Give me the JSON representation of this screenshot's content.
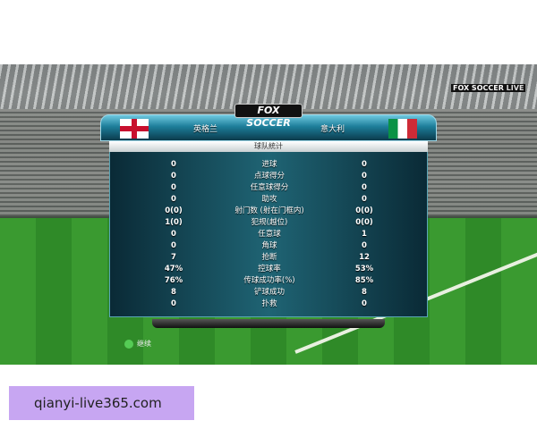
{
  "broadcast": {
    "logo": "FOX SOCCER",
    "live_logo": "FOX SOCCER",
    "live_label": "LIVE"
  },
  "teams": {
    "home": "英格兰",
    "away": "意大利"
  },
  "title": "球队統计",
  "stats": [
    {
      "home": "0",
      "label": "进球",
      "away": "0"
    },
    {
      "home": "0",
      "label": "点球得分",
      "away": "0"
    },
    {
      "home": "0",
      "label": "任意球得分",
      "away": "0"
    },
    {
      "home": "0",
      "label": "助攻",
      "away": "0"
    },
    {
      "home": "0(0)",
      "label": "射门数 (射在门框内)",
      "away": "0(0)"
    },
    {
      "home": "1(0)",
      "label": "犯规(越位)",
      "away": "0(0)"
    },
    {
      "home": "0",
      "label": "任意球",
      "away": "1"
    },
    {
      "home": "0",
      "label": "角球",
      "away": "0"
    },
    {
      "home": "7",
      "label": "抢断",
      "away": "12"
    },
    {
      "home": "47%",
      "label": "控球率",
      "away": "53%"
    },
    {
      "home": "76%",
      "label": "传球成功率(%)",
      "away": "85%"
    },
    {
      "home": "8",
      "label": "铲球成功",
      "away": "8"
    },
    {
      "home": "0",
      "label": "扑救",
      "away": "0"
    }
  ],
  "continue_label": "继续",
  "watermark": "qianyi-live365.com"
}
